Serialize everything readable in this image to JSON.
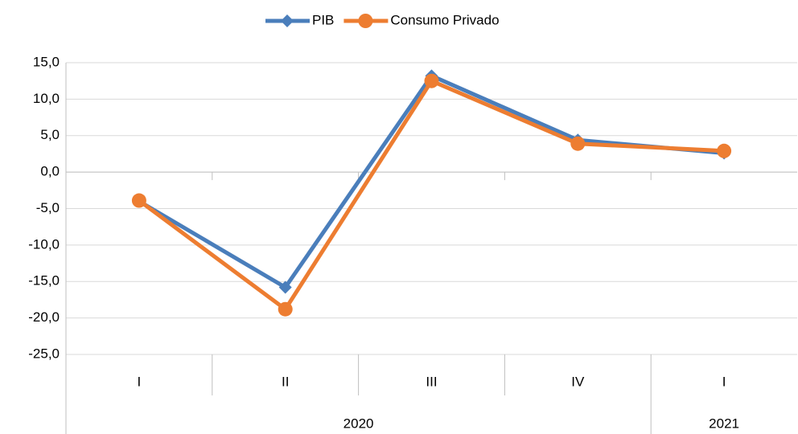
{
  "chart_data": {
    "type": "line",
    "groups": [
      {
        "name": "2020",
        "categories": [
          "I",
          "II",
          "III",
          "IV"
        ]
      },
      {
        "name": "2021",
        "categories": [
          "I"
        ]
      }
    ],
    "series": [
      {
        "name": "PIB",
        "color": "#4a7ebb",
        "marker": "diamond",
        "values": [
          -4.0,
          -15.8,
          13.2,
          4.4,
          2.6
        ]
      },
      {
        "name": "Consumo Privado",
        "color": "#ed7d31",
        "marker": "circle",
        "values": [
          -3.9,
          -18.8,
          12.5,
          3.9,
          2.9
        ]
      }
    ],
    "ylim": [
      -25,
      15
    ],
    "yticks": [
      {
        "value": -25,
        "label": "-25,0"
      },
      {
        "value": -20,
        "label": "-20,0"
      },
      {
        "value": -15,
        "label": "-15,0"
      },
      {
        "value": -10,
        "label": "-10,0"
      },
      {
        "value": -5,
        "label": "-5,0"
      },
      {
        "value": 0,
        "label": "0,0"
      },
      {
        "value": 5,
        "label": "5,0"
      },
      {
        "value": 10,
        "label": "10,0"
      },
      {
        "value": 15,
        "label": "15,0"
      }
    ],
    "grid": true,
    "legend": "top"
  }
}
